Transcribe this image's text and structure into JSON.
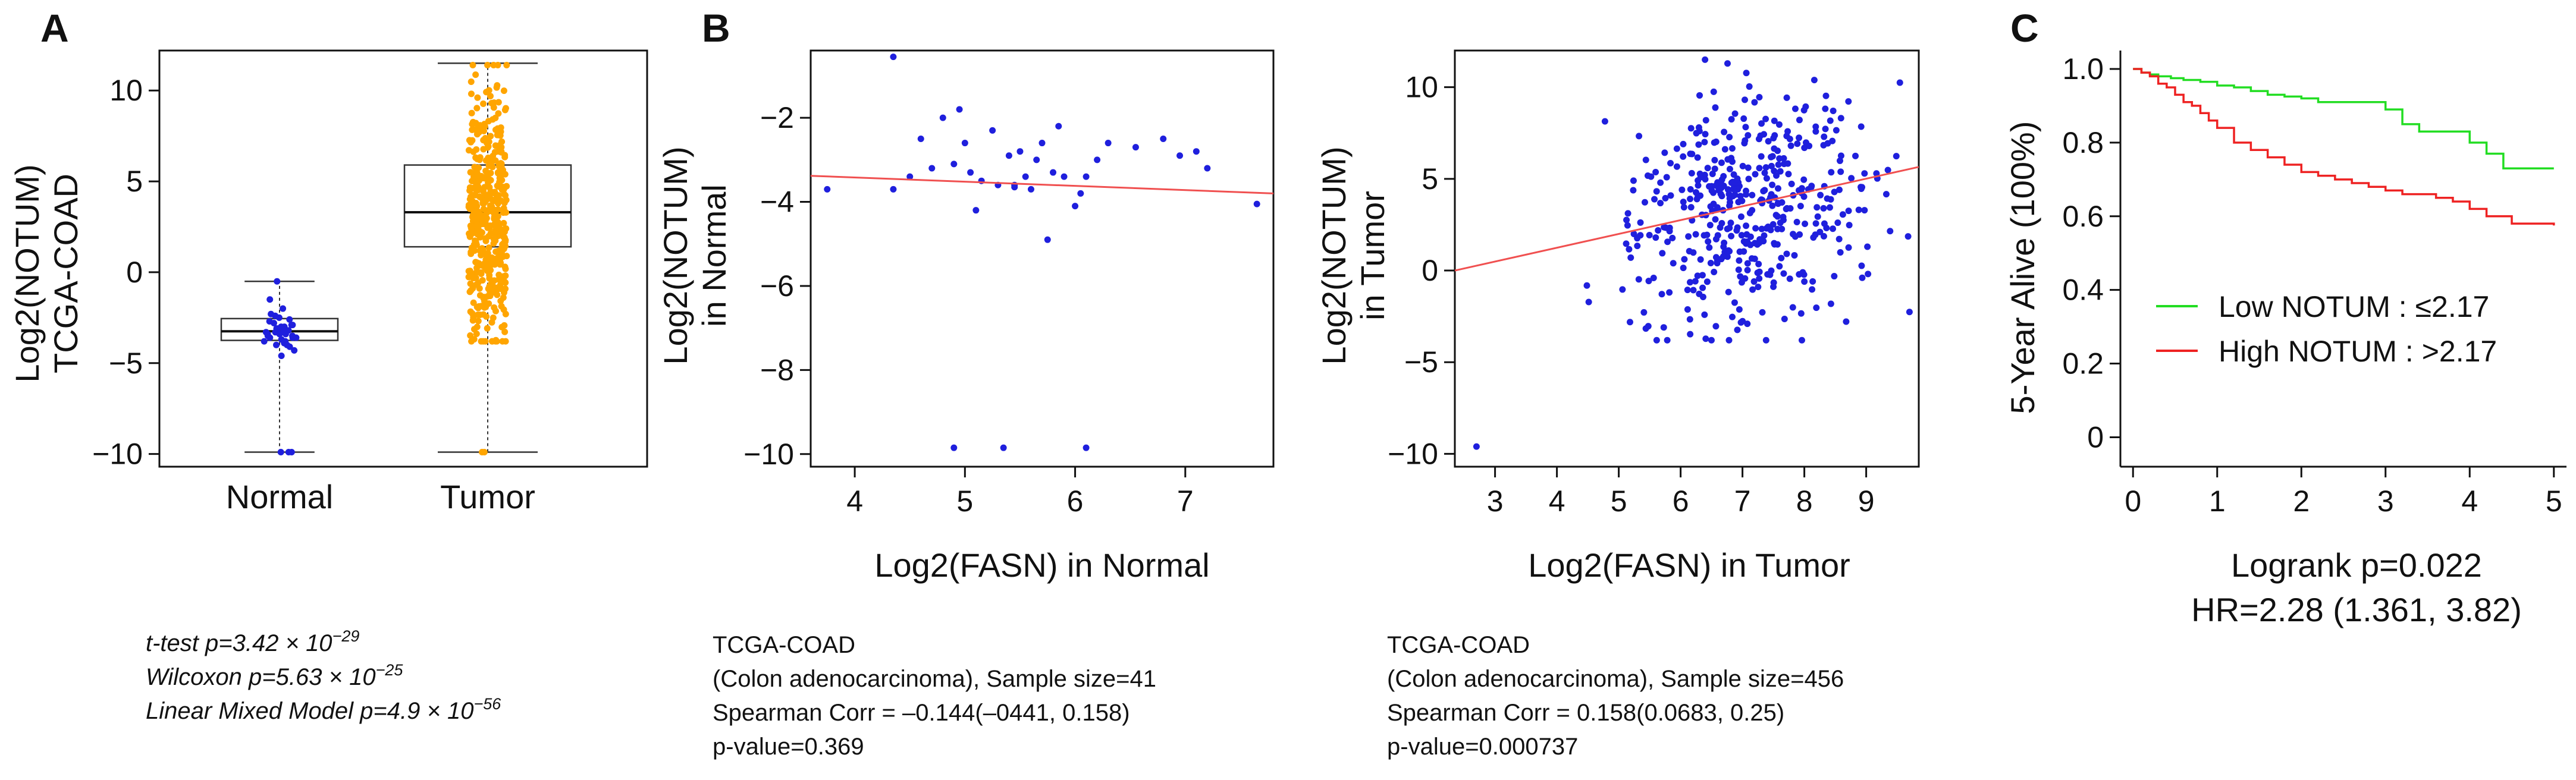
{
  "chart_data": [
    {
      "type": "box",
      "panel_label": "A",
      "ylabel_lines": [
        "Log2(NOTUM)",
        "TCGA-COAD"
      ],
      "ylim": [
        -10.7,
        12.2
      ],
      "yticks": [
        -10,
        -5,
        0,
        5,
        10
      ],
      "tick_labels": [
        "−10",
        "−5",
        "0",
        "5",
        "10"
      ],
      "categories": [
        "Normal",
        "Tumor"
      ],
      "colors": {
        "Normal": "#1f1fdd",
        "Tumor": "#ffa500",
        "box": "#333333"
      },
      "boxes": [
        {
          "name": "Normal",
          "whisker_low": -9.9,
          "q1": -3.75,
          "median": -3.25,
          "q3": -2.55,
          "whisker_high": -0.5
        },
        {
          "name": "Tumor",
          "whisker_low": -9.9,
          "q1": 1.4,
          "median": 3.3,
          "q3": 5.9,
          "whisker_high": 11.5
        }
      ],
      "normal_points": [
        -9.9,
        -9.9,
        -9.9,
        -0.5,
        -1.5,
        -2.0,
        -2.3,
        -2.5,
        -2.6,
        -2.7,
        -2.8,
        -2.9,
        -3.0,
        -3.1,
        -3.1,
        -3.2,
        -3.2,
        -3.3,
        -3.3,
        -3.4,
        -3.4,
        -3.5,
        -3.5,
        -3.6,
        -3.6,
        -3.7,
        -3.8,
        -3.9,
        -4.0,
        -4.1,
        -4.3,
        -4.6,
        -2.9,
        -3.0,
        -3.2,
        -3.3,
        -3.4,
        -3.6,
        -3.8,
        -4.0,
        -2.4
      ],
      "n_tumor_points": 456,
      "stats": [
        {
          "label": "t-test p=3.42 × 10",
          "exp": "−29"
        },
        {
          "label": "Wilcoxon p=5.63 × 10",
          "exp": "−25"
        },
        {
          "label": "Linear Mixed Model p=4.9 × 10",
          "exp": "−56"
        }
      ]
    },
    {
      "type": "scatter",
      "panel_label": "B",
      "xlabel": "Log2(FASN) in Normal",
      "ylabel_lines": [
        "Log2(NOTUM)",
        "in Normal"
      ],
      "xlim": [
        3.6,
        7.8
      ],
      "ylim": [
        -10.3,
        -0.4
      ],
      "xticks": [
        4,
        5,
        6,
        7
      ],
      "yticks": [
        -10,
        -8,
        -6,
        -4,
        -2
      ],
      "ytick_labels": [
        "−10",
        "−8",
        "−6",
        "−4",
        "−2"
      ],
      "fit_line": [
        [
          3.6,
          -3.38
        ],
        [
          7.8,
          -3.8
        ]
      ],
      "points": [
        [
          3.75,
          -3.7
        ],
        [
          4.35,
          -0.55
        ],
        [
          4.35,
          -3.7
        ],
        [
          4.5,
          -3.4
        ],
        [
          4.6,
          -2.5
        ],
        [
          4.7,
          -3.2
        ],
        [
          4.8,
          -2.0
        ],
        [
          4.9,
          -3.1
        ],
        [
          4.95,
          -1.8
        ],
        [
          5.0,
          -2.6
        ],
        [
          5.05,
          -3.3
        ],
        [
          5.1,
          -4.2
        ],
        [
          5.15,
          -3.5
        ],
        [
          5.25,
          -2.3
        ],
        [
          5.3,
          -3.6
        ],
        [
          5.4,
          -2.9
        ],
        [
          5.45,
          -3.6
        ],
        [
          5.5,
          -2.8
        ],
        [
          5.55,
          -3.4
        ],
        [
          5.6,
          -3.7
        ],
        [
          5.65,
          -3.0
        ],
        [
          5.7,
          -2.6
        ],
        [
          5.75,
          -4.9
        ],
        [
          5.8,
          -3.3
        ],
        [
          5.85,
          -2.2
        ],
        [
          5.9,
          -3.4
        ],
        [
          6.0,
          -4.1
        ],
        [
          6.05,
          -3.8
        ],
        [
          6.1,
          -3.4
        ],
        [
          6.2,
          -3.0
        ],
        [
          6.3,
          -2.6
        ],
        [
          6.55,
          -2.7
        ],
        [
          6.8,
          -2.5
        ],
        [
          6.95,
          -2.9
        ],
        [
          7.1,
          -2.8
        ],
        [
          7.2,
          -3.2
        ],
        [
          7.65,
          -4.05
        ],
        [
          4.9,
          -9.85
        ],
        [
          5.35,
          -9.85
        ],
        [
          6.1,
          -9.85
        ],
        [
          5.45,
          -3.65
        ]
      ],
      "caption": [
        "TCGA-COAD",
        "(Colon adenocarcinoma), Sample size=41",
        "Spearman Corr = –0.144(–0441, 0.158)",
        "p-value=0.369"
      ]
    },
    {
      "type": "scatter",
      "xlabel": "Log2(FASN) in Tumor",
      "ylabel_lines": [
        "Log2(NOTUM)",
        "in Tumor"
      ],
      "xlim": [
        2.35,
        9.85
      ],
      "ylim": [
        -10.7,
        12.0
      ],
      "xticks": [
        3,
        4,
        5,
        6,
        7,
        8,
        9
      ],
      "yticks": [
        -10,
        -5,
        0,
        5,
        10
      ],
      "ytick_labels": [
        "−10",
        "−5",
        "0",
        "5",
        "10"
      ],
      "fit_line": [
        [
          2.35,
          0.0
        ],
        [
          9.85,
          5.65
        ]
      ],
      "n_points": 456,
      "caption": [
        "TCGA-COAD",
        "(Colon adenocarcinoma), Sample size=456",
        "Spearman Corr = 0.158(0.0683, 0.25)",
        "p-value=0.000737"
      ]
    },
    {
      "type": "line",
      "panel_label": "C",
      "ylabel": "5-Year Alive (100%)",
      "xlim": [
        -0.15,
        5.15
      ],
      "ylim": [
        -0.08,
        1.05
      ],
      "xticks": [
        0,
        1,
        2,
        3,
        4,
        5
      ],
      "yticks": [
        0,
        0.2,
        0.4,
        0.6,
        0.8,
        1.0
      ],
      "ytick_labels": [
        "0",
        "0.2",
        "0.4",
        "0.6",
        "0.8",
        "1.0"
      ],
      "series": [
        {
          "name": "Low NOTUM : ≤2.17",
          "color": "#22dd22",
          "x": [
            0,
            0.1,
            0.2,
            0.3,
            0.45,
            0.6,
            0.8,
            1.0,
            1.2,
            1.4,
            1.6,
            1.8,
            2.0,
            2.2,
            2.5,
            2.8,
            3.0,
            3.2,
            3.4,
            3.6,
            3.9,
            4.0,
            4.2,
            4.4,
            4.6,
            5.0
          ],
          "y": [
            1.0,
            0.99,
            0.985,
            0.98,
            0.975,
            0.97,
            0.965,
            0.955,
            0.95,
            0.94,
            0.93,
            0.925,
            0.92,
            0.91,
            0.91,
            0.91,
            0.89,
            0.85,
            0.83,
            0.83,
            0.83,
            0.8,
            0.77,
            0.73,
            0.73,
            0.73
          ]
        },
        {
          "name": "High NOTUM : >2.17",
          "color": "#ee2222",
          "x": [
            0,
            0.1,
            0.2,
            0.3,
            0.4,
            0.5,
            0.6,
            0.7,
            0.8,
            0.9,
            1.0,
            1.2,
            1.4,
            1.6,
            1.8,
            2.0,
            2.2,
            2.4,
            2.6,
            2.8,
            3.0,
            3.2,
            3.4,
            3.6,
            3.8,
            4.0,
            4.2,
            4.3,
            4.5,
            4.6,
            4.8,
            5.0
          ],
          "y": [
            1.0,
            0.99,
            0.98,
            0.96,
            0.95,
            0.93,
            0.91,
            0.9,
            0.88,
            0.86,
            0.84,
            0.8,
            0.78,
            0.76,
            0.74,
            0.72,
            0.71,
            0.7,
            0.69,
            0.68,
            0.67,
            0.66,
            0.66,
            0.65,
            0.64,
            0.62,
            0.6,
            0.6,
            0.58,
            0.58,
            0.58,
            0.575
          ]
        }
      ],
      "stats_lines": [
        "Logrank p=0.022",
        "HR=2.28 (1.361, 3.82)"
      ]
    }
  ]
}
